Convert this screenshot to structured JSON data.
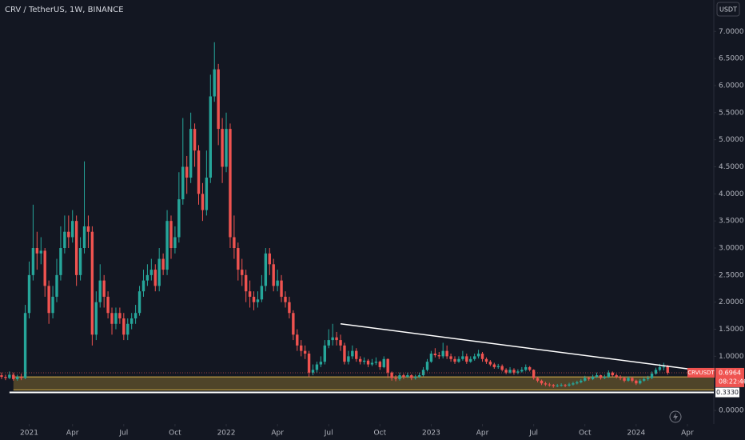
{
  "chart_data": {
    "type": "candlestick",
    "title": "CRV / TetherUS, 1W, BINANCE",
    "currency_button": "USDT",
    "symbol": "CRVUSDT",
    "countdown": "08:22:46",
    "up_color": "#26a69a",
    "down_color": "#ef5350",
    "xlim": [
      -0.4,
      180.1
    ],
    "ylim": [
      -0.25,
      7.58
    ],
    "xticks": [
      {
        "value": 7,
        "label": "2021"
      },
      {
        "value": 18,
        "label": "Apr"
      },
      {
        "value": 31,
        "label": "Jul"
      },
      {
        "value": 44,
        "label": "Oct"
      },
      {
        "value": 57,
        "label": "2022"
      },
      {
        "value": 70,
        "label": "Apr"
      },
      {
        "value": 83,
        "label": "Jul"
      },
      {
        "value": 96,
        "label": "Oct"
      },
      {
        "value": 109,
        "label": "2023"
      },
      {
        "value": 122,
        "label": "Apr"
      },
      {
        "value": 135,
        "label": "Jul"
      },
      {
        "value": 148,
        "label": "Oct"
      },
      {
        "value": 161,
        "label": "2024"
      },
      {
        "value": 174,
        "label": "Apr"
      }
    ],
    "yticks": [
      {
        "value": 0,
        "label": "0.0000"
      },
      {
        "value": 1,
        "label": "1.0000"
      },
      {
        "value": 1.5,
        "label": "1.5000"
      },
      {
        "value": 2,
        "label": "2.0000"
      },
      {
        "value": 2.5,
        "label": "2.5000"
      },
      {
        "value": 3,
        "label": "3.0000"
      },
      {
        "value": 3.5,
        "label": "3.5000"
      },
      {
        "value": 4,
        "label": "4.0000"
      },
      {
        "value": 4.5,
        "label": "4.5000"
      },
      {
        "value": 5,
        "label": "5.0000"
      },
      {
        "value": 5.5,
        "label": "5.5000"
      },
      {
        "value": 6,
        "label": "6.0000"
      },
      {
        "value": 6.5,
        "label": "6.5000"
      },
      {
        "value": 7,
        "label": "7.0000"
      }
    ],
    "trendline": {
      "x": [
        86,
        174
      ],
      "y": [
        1.6,
        0.77
      ]
    },
    "zone": [
      0.38,
      0.62
    ],
    "support": {
      "value": 0.333,
      "label": "0.3330"
    },
    "ohlc": [
      [
        0.65,
        0.7,
        0.58,
        0.62
      ],
      [
        0.62,
        0.66,
        0.56,
        0.6
      ],
      [
        0.6,
        0.72,
        0.58,
        0.66
      ],
      [
        0.66,
        0.7,
        0.55,
        0.58
      ],
      [
        0.58,
        0.66,
        0.55,
        0.62
      ],
      [
        0.62,
        0.68,
        0.56,
        0.6
      ],
      [
        0.6,
        1.95,
        0.58,
        1.8
      ],
      [
        1.8,
        2.75,
        1.7,
        2.5
      ],
      [
        2.5,
        3.8,
        2.4,
        3.0
      ],
      [
        3.0,
        3.3,
        2.6,
        2.9
      ],
      [
        2.9,
        3.2,
        2.7,
        2.95
      ],
      [
        2.95,
        3.0,
        2.1,
        2.3
      ],
      [
        2.3,
        2.4,
        1.6,
        1.8
      ],
      [
        1.8,
        2.3,
        1.7,
        2.1
      ],
      [
        2.1,
        2.8,
        2.0,
        2.5
      ],
      [
        2.5,
        3.4,
        2.4,
        3.0
      ],
      [
        3.0,
        3.6,
        2.9,
        3.3
      ],
      [
        3.3,
        3.6,
        3.0,
        3.2
      ],
      [
        3.2,
        3.7,
        3.1,
        3.5
      ],
      [
        3.5,
        3.6,
        2.3,
        2.5
      ],
      [
        2.5,
        3.2,
        2.4,
        3.0
      ],
      [
        3.0,
        4.6,
        2.9,
        3.4
      ],
      [
        3.4,
        3.6,
        3.0,
        3.3
      ],
      [
        3.3,
        3.4,
        1.2,
        1.4
      ],
      [
        1.4,
        2.2,
        1.3,
        2.0
      ],
      [
        2.0,
        2.7,
        1.9,
        2.4
      ],
      [
        2.4,
        2.5,
        1.9,
        2.1
      ],
      [
        2.1,
        2.2,
        1.7,
        1.8
      ],
      [
        1.8,
        1.9,
        1.4,
        1.6
      ],
      [
        1.6,
        1.9,
        1.5,
        1.8
      ],
      [
        1.8,
        1.9,
        1.6,
        1.7
      ],
      [
        1.7,
        1.8,
        1.3,
        1.4
      ],
      [
        1.4,
        1.7,
        1.3,
        1.6
      ],
      [
        1.6,
        1.8,
        1.5,
        1.7
      ],
      [
        1.7,
        1.95,
        1.6,
        1.8
      ],
      [
        1.8,
        2.3,
        1.75,
        2.2
      ],
      [
        2.2,
        2.6,
        2.1,
        2.4
      ],
      [
        2.4,
        2.7,
        2.3,
        2.5
      ],
      [
        2.5,
        2.8,
        2.4,
        2.6
      ],
      [
        2.6,
        2.7,
        2.2,
        2.3
      ],
      [
        2.3,
        3.0,
        2.2,
        2.8
      ],
      [
        2.8,
        2.9,
        2.5,
        2.6
      ],
      [
        2.6,
        3.7,
        2.5,
        3.5
      ],
      [
        3.5,
        3.6,
        2.8,
        3.0
      ],
      [
        3.0,
        3.4,
        2.9,
        3.2
      ],
      [
        3.2,
        4.4,
        3.1,
        3.9
      ],
      [
        3.9,
        5.4,
        3.8,
        4.5
      ],
      [
        4.5,
        4.7,
        4.0,
        4.3
      ],
      [
        4.3,
        5.5,
        4.2,
        5.2
      ],
      [
        5.2,
        5.3,
        4.5,
        4.8
      ],
      [
        4.8,
        4.9,
        3.8,
        4.0
      ],
      [
        4.0,
        4.2,
        3.5,
        3.7
      ],
      [
        3.7,
        4.8,
        3.6,
        4.3
      ],
      [
        4.3,
        6.2,
        4.2,
        5.8
      ],
      [
        5.8,
        6.8,
        5.7,
        6.3
      ],
      [
        6.3,
        6.4,
        4.9,
        5.2
      ],
      [
        5.2,
        5.4,
        4.2,
        4.5
      ],
      [
        4.5,
        5.5,
        4.4,
        5.2
      ],
      [
        5.2,
        5.3,
        3.0,
        3.2
      ],
      [
        3.2,
        3.6,
        2.8,
        3.0
      ],
      [
        3.0,
        3.1,
        2.4,
        2.6
      ],
      [
        2.6,
        2.8,
        2.3,
        2.5
      ],
      [
        2.5,
        2.6,
        2.0,
        2.2
      ],
      [
        2.2,
        2.4,
        1.9,
        2.1
      ],
      [
        2.1,
        2.2,
        1.85,
        2.0
      ],
      [
        2.0,
        2.2,
        1.9,
        2.05
      ],
      [
        2.05,
        2.5,
        2.0,
        2.3
      ],
      [
        2.3,
        3.0,
        2.2,
        2.9
      ],
      [
        2.9,
        3.0,
        2.5,
        2.7
      ],
      [
        2.7,
        2.8,
        2.2,
        2.3
      ],
      [
        2.3,
        2.6,
        2.2,
        2.4
      ],
      [
        2.4,
        2.5,
        2.0,
        2.1
      ],
      [
        2.1,
        2.2,
        1.9,
        2.0
      ],
      [
        2.0,
        2.1,
        1.7,
        1.8
      ],
      [
        1.8,
        1.85,
        1.3,
        1.4
      ],
      [
        1.4,
        1.5,
        1.1,
        1.2
      ],
      [
        1.2,
        1.3,
        1.0,
        1.1
      ],
      [
        1.1,
        1.2,
        0.95,
        1.05
      ],
      [
        1.05,
        1.1,
        0.62,
        0.7
      ],
      [
        0.7,
        0.85,
        0.65,
        0.75
      ],
      [
        0.75,
        0.9,
        0.7,
        0.85
      ],
      [
        0.85,
        1.0,
        0.8,
        0.9
      ],
      [
        0.9,
        1.3,
        0.85,
        1.2
      ],
      [
        1.2,
        1.5,
        1.15,
        1.3
      ],
      [
        1.3,
        1.6,
        1.2,
        1.35
      ],
      [
        1.35,
        1.45,
        1.2,
        1.3
      ],
      [
        1.3,
        1.4,
        1.1,
        1.2
      ],
      [
        1.2,
        1.25,
        0.85,
        0.9
      ],
      [
        0.9,
        1.1,
        0.85,
        1.0
      ],
      [
        1.0,
        1.2,
        0.95,
        1.1
      ],
      [
        1.1,
        1.15,
        0.9,
        0.95
      ],
      [
        0.95,
        1.0,
        0.85,
        0.9
      ],
      [
        0.9,
        0.98,
        0.85,
        0.92
      ],
      [
        0.92,
        0.95,
        0.8,
        0.85
      ],
      [
        0.85,
        0.95,
        0.82,
        0.88
      ],
      [
        0.88,
        0.98,
        0.84,
        0.9
      ],
      [
        0.9,
        0.92,
        0.75,
        0.8
      ],
      [
        0.8,
        1.0,
        0.78,
        0.95
      ],
      [
        0.95,
        0.96,
        0.6,
        0.7
      ],
      [
        0.7,
        0.72,
        0.55,
        0.6
      ],
      [
        0.6,
        0.65,
        0.54,
        0.58
      ],
      [
        0.58,
        0.7,
        0.55,
        0.65
      ],
      [
        0.65,
        0.68,
        0.58,
        0.62
      ],
      [
        0.62,
        0.7,
        0.6,
        0.65
      ],
      [
        0.65,
        0.67,
        0.56,
        0.6
      ],
      [
        0.6,
        0.66,
        0.57,
        0.62
      ],
      [
        0.62,
        0.7,
        0.6,
        0.65
      ],
      [
        0.65,
        0.8,
        0.63,
        0.75
      ],
      [
        0.75,
        0.95,
        0.72,
        0.9
      ],
      [
        0.9,
        1.1,
        0.88,
        1.05
      ],
      [
        1.05,
        1.15,
        0.98,
        1.02
      ],
      [
        1.02,
        1.08,
        0.95,
        1.0
      ],
      [
        1.0,
        1.25,
        0.96,
        1.1
      ],
      [
        1.1,
        1.2,
        0.95,
        1.0
      ],
      [
        1.0,
        1.05,
        0.9,
        0.95
      ],
      [
        0.95,
        1.0,
        0.86,
        0.9
      ],
      [
        0.9,
        1.0,
        0.88,
        0.95
      ],
      [
        0.95,
        1.1,
        0.92,
        1.0
      ],
      [
        1.0,
        1.05,
        0.86,
        0.9
      ],
      [
        0.9,
        1.0,
        0.88,
        0.95
      ],
      [
        0.95,
        1.05,
        0.92,
        1.0
      ],
      [
        1.0,
        1.12,
        0.96,
        1.05
      ],
      [
        1.05,
        1.08,
        0.9,
        0.95
      ],
      [
        0.95,
        0.98,
        0.86,
        0.9
      ],
      [
        0.9,
        0.93,
        0.82,
        0.85
      ],
      [
        0.85,
        0.88,
        0.77,
        0.8
      ],
      [
        0.8,
        0.86,
        0.77,
        0.82
      ],
      [
        0.82,
        0.85,
        0.72,
        0.75
      ],
      [
        0.75,
        0.78,
        0.67,
        0.7
      ],
      [
        0.7,
        0.8,
        0.68,
        0.75
      ],
      [
        0.75,
        0.78,
        0.66,
        0.7
      ],
      [
        0.7,
        0.76,
        0.67,
        0.72
      ],
      [
        0.72,
        0.8,
        0.7,
        0.75
      ],
      [
        0.75,
        0.85,
        0.72,
        0.8
      ],
      [
        0.8,
        0.82,
        0.72,
        0.75
      ],
      [
        0.75,
        0.76,
        0.57,
        0.6
      ],
      [
        0.6,
        0.62,
        0.52,
        0.55
      ],
      [
        0.55,
        0.57,
        0.47,
        0.5
      ],
      [
        0.5,
        0.53,
        0.45,
        0.48
      ],
      [
        0.48,
        0.51,
        0.44,
        0.47
      ],
      [
        0.47,
        0.49,
        0.42,
        0.45
      ],
      [
        0.45,
        0.49,
        0.43,
        0.46
      ],
      [
        0.46,
        0.5,
        0.44,
        0.47
      ],
      [
        0.47,
        0.49,
        0.43,
        0.46
      ],
      [
        0.46,
        0.51,
        0.44,
        0.48
      ],
      [
        0.48,
        0.53,
        0.46,
        0.5
      ],
      [
        0.5,
        0.55,
        0.48,
        0.52
      ],
      [
        0.52,
        0.58,
        0.5,
        0.55
      ],
      [
        0.55,
        0.64,
        0.53,
        0.6
      ],
      [
        0.6,
        0.62,
        0.55,
        0.58
      ],
      [
        0.58,
        0.66,
        0.56,
        0.62
      ],
      [
        0.62,
        0.7,
        0.6,
        0.65
      ],
      [
        0.65,
        0.66,
        0.57,
        0.6
      ],
      [
        0.6,
        0.66,
        0.58,
        0.62
      ],
      [
        0.62,
        0.74,
        0.6,
        0.7
      ],
      [
        0.7,
        0.72,
        0.62,
        0.65
      ],
      [
        0.65,
        0.68,
        0.59,
        0.62
      ],
      [
        0.62,
        0.65,
        0.56,
        0.6
      ],
      [
        0.6,
        0.62,
        0.52,
        0.55
      ],
      [
        0.55,
        0.63,
        0.53,
        0.6
      ],
      [
        0.6,
        0.62,
        0.52,
        0.55
      ],
      [
        0.55,
        0.57,
        0.47,
        0.5
      ],
      [
        0.5,
        0.58,
        0.48,
        0.55
      ],
      [
        0.55,
        0.62,
        0.53,
        0.58
      ],
      [
        0.58,
        0.64,
        0.55,
        0.6
      ],
      [
        0.6,
        0.72,
        0.58,
        0.68
      ],
      [
        0.68,
        0.79,
        0.66,
        0.75
      ],
      [
        0.75,
        0.86,
        0.72,
        0.8
      ],
      [
        0.8,
        0.88,
        0.74,
        0.81
      ],
      [
        0.81,
        0.84,
        0.66,
        0.6964
      ]
    ]
  }
}
